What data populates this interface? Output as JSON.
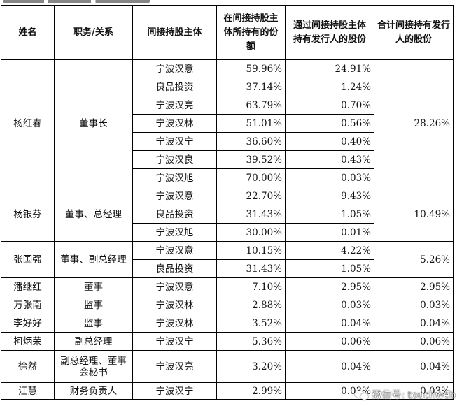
{
  "headers": {
    "name": "姓名",
    "role": "职务/关系",
    "entity": "间接持股主体",
    "share_in_entity": "在间接持股主体所持有的份额",
    "indirect_share": "通过间接持股主体持有发行人的股份",
    "total_share": "合计间接持有发行人的股份"
  },
  "people": [
    {
      "name": "杨红春",
      "role": "董事长",
      "total": "28.26%",
      "rows": [
        {
          "entity": "宁波汉意",
          "share": "59.96%",
          "issuer": "24.91%"
        },
        {
          "entity": "良品投资",
          "share": "37.14%",
          "issuer": "1.24%"
        },
        {
          "entity": "宁波汉亮",
          "share": "63.79%",
          "issuer": "0.70%"
        },
        {
          "entity": "宁波汉林",
          "share": "51.01%",
          "issuer": "0.56%"
        },
        {
          "entity": "宁波汉宁",
          "share": "36.60%",
          "issuer": "0.40%"
        },
        {
          "entity": "宁波汉良",
          "share": "39.52%",
          "issuer": "0.43%"
        },
        {
          "entity": "宁波汉旭",
          "share": "70.00%",
          "issuer": "0.03%"
        }
      ]
    },
    {
      "name": "杨银芬",
      "role": "董事、总经理",
      "total": "10.49%",
      "rows": [
        {
          "entity": "宁波汉意",
          "share": "22.70%",
          "issuer": "9.43%"
        },
        {
          "entity": "良品投资",
          "share": "31.43%",
          "issuer": "1.05%"
        },
        {
          "entity": "宁波汉旭",
          "share": "30.00%",
          "issuer": "0.01%"
        }
      ]
    },
    {
      "name": "张国强",
      "role": "董事、副总经理",
      "total": "5.26%",
      "rows": [
        {
          "entity": "宁波汉意",
          "share": "10.15%",
          "issuer": "4.22%"
        },
        {
          "entity": "良品投资",
          "share": "31.43%",
          "issuer": "1.05%"
        }
      ]
    },
    {
      "name": "潘继红",
      "role": "董事",
      "total": "2.95%",
      "rows": [
        {
          "entity": "宁波汉意",
          "share": "7.10%",
          "issuer": "2.95%"
        }
      ]
    },
    {
      "name": "万张南",
      "role": "监事",
      "total": "0.03%",
      "rows": [
        {
          "entity": "宁波汉林",
          "share": "2.88%",
          "issuer": "0.03%"
        }
      ]
    },
    {
      "name": "李好好",
      "role": "监事",
      "total": "0.04%",
      "rows": [
        {
          "entity": "宁波汉林",
          "share": "3.52%",
          "issuer": "0.04%"
        }
      ]
    },
    {
      "name": "柯炳荣",
      "role": "副总经理",
      "total": "0.06%",
      "rows": [
        {
          "entity": "宁波汉宁",
          "share": "5.36%",
          "issuer": "0.06%"
        }
      ]
    },
    {
      "name": "徐然",
      "role": "副总经理、董事会秘书",
      "total": "0.04%",
      "rows": [
        {
          "entity": "宁波汉亮",
          "share": "3.20%",
          "issuer": "0.04%"
        }
      ]
    },
    {
      "name": "江慧",
      "role": "财务负责人",
      "total": "0.03%",
      "rows": [
        {
          "entity": "宁波汉宁",
          "share": "2.99%",
          "issuer": "0.03%"
        }
      ]
    }
  ],
  "watermark": "微信号: touchweb"
}
